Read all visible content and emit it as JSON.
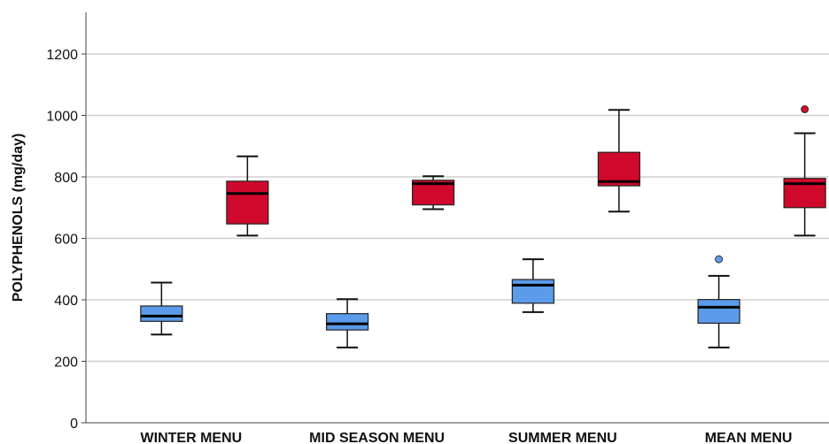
{
  "chart_data": {
    "type": "box",
    "ylabel": "POLYPHENOLS (mg/day)",
    "ylim": [
      0,
      1300
    ],
    "yticks": [
      0,
      200,
      400,
      600,
      800,
      1000,
      1200
    ],
    "grid": true,
    "categories": [
      "WINTER MENU",
      "MID SEASON MENU",
      "SUMMER MENU",
      "MEAN MENU"
    ],
    "series": [
      {
        "color": "#5b9bea",
        "boxes": [
          {
            "min": 287,
            "q1": 330,
            "median": 347,
            "q3": 380,
            "max": 456,
            "outliers": []
          },
          {
            "min": 245,
            "q1": 302,
            "median": 322,
            "q3": 355,
            "max": 402,
            "outliers": []
          },
          {
            "min": 360,
            "q1": 389,
            "median": 448,
            "q3": 466,
            "max": 532,
            "outliers": []
          },
          {
            "min": 245,
            "q1": 324,
            "median": 376,
            "q3": 401,
            "max": 478,
            "outliers": [
              532
            ]
          }
        ]
      },
      {
        "color": "#d0092c",
        "boxes": [
          {
            "min": 609,
            "q1": 647,
            "median": 746,
            "q3": 786,
            "max": 867,
            "outliers": []
          },
          {
            "min": 695,
            "q1": 709,
            "median": 778,
            "q3": 789,
            "max": 802,
            "outliers": []
          },
          {
            "min": 687,
            "q1": 771,
            "median": 785,
            "q3": 880,
            "max": 1018,
            "outliers": []
          },
          {
            "min": 609,
            "q1": 700,
            "median": 778,
            "q3": 795,
            "max": 942,
            "outliers": [
              1020
            ]
          }
        ]
      }
    ]
  }
}
